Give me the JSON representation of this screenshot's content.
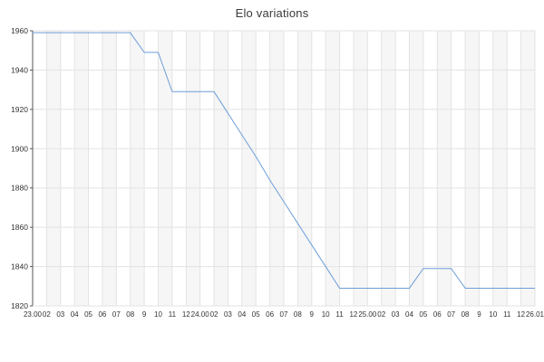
{
  "chart_data": {
    "type": "line",
    "title": "Elo variations",
    "xlabel": "",
    "ylabel": "",
    "ylim": [
      1820,
      1960
    ],
    "yticks": [
      1820,
      1840,
      1860,
      1880,
      1900,
      1920,
      1940,
      1960
    ],
    "x_labels": [
      "23.00",
      "02",
      "03",
      "04",
      "05",
      "06",
      "07",
      "08",
      "9",
      "10",
      "11",
      "12",
      "24.00",
      "02",
      "03",
      "04",
      "05",
      "06",
      "07",
      "08",
      "9",
      "10",
      "11",
      "12",
      "25.00",
      "02",
      "03",
      "04",
      "05",
      "06",
      "07",
      "08",
      "9",
      "10",
      "11",
      "12",
      "26.01"
    ],
    "series": [
      {
        "name": "Elo",
        "values": [
          1959,
          1959,
          1959,
          1959,
          1959,
          1959,
          1959,
          1959,
          1949,
          1949,
          1929,
          1929,
          1929,
          1929,
          1918,
          1907,
          1896,
          1884,
          1873,
          1862,
          1851,
          1840,
          1829,
          1829,
          1829,
          1829,
          1829,
          1829,
          1839,
          1839,
          1839,
          1829,
          1829,
          1829,
          1829,
          1829,
          1829
        ]
      }
    ],
    "grid": "on",
    "legend": "none",
    "colors": {
      "line": "#6d9ed8",
      "grid": "#e3e3e3",
      "band": "#f6f6f6",
      "axis": "#555555",
      "text": "#333333"
    }
  }
}
